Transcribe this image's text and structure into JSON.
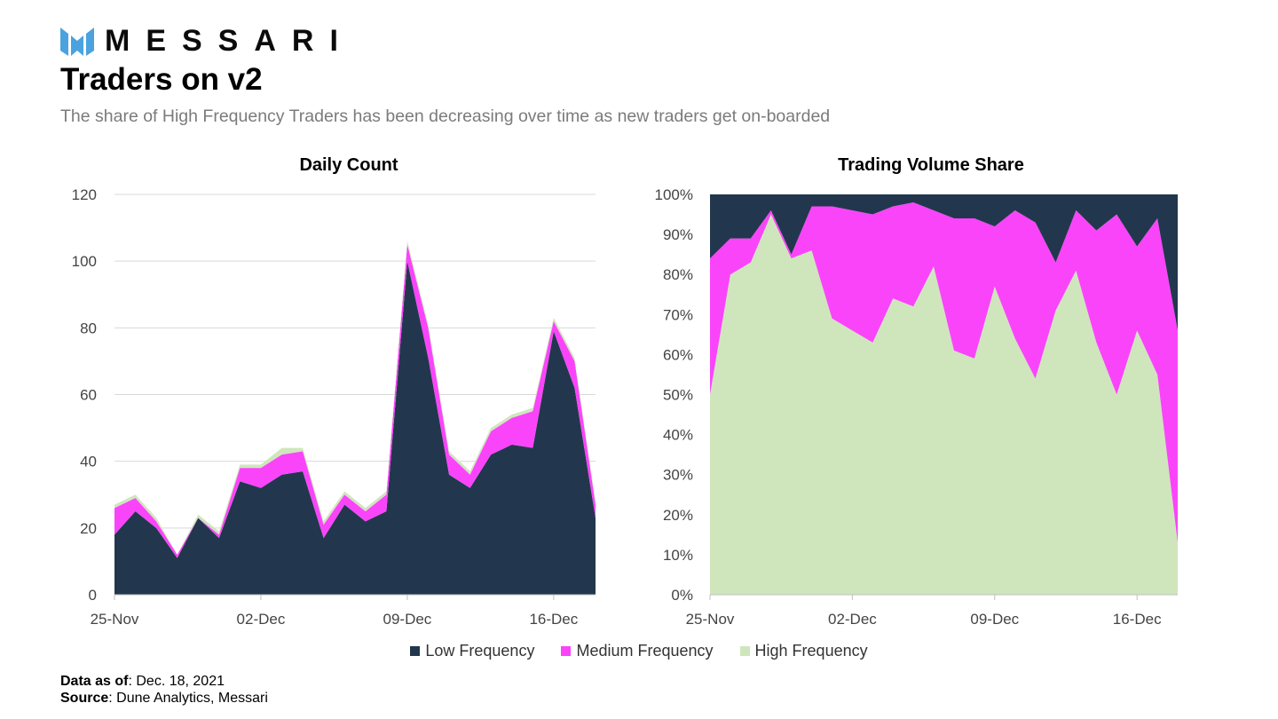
{
  "brand": {
    "name": "MESSARI",
    "logo_icon": "messari-logo-icon",
    "logo_color": "#4aa3df"
  },
  "header": {
    "title": "Traders on v2",
    "subtitle": "The share of High Frequency Traders has been decreasing over time as new traders get on-boarded"
  },
  "legend": [
    {
      "label": "Low Frequency",
      "color": "#22374d"
    },
    {
      "label": "Medium Frequency",
      "color": "#fa44fa"
    },
    {
      "label": "High Frequency",
      "color": "#cfe6bd"
    }
  ],
  "footer": {
    "data_as_of_label": "Data as of",
    "data_as_of_value": ": Dec. 18, 2021",
    "source_label": "Source",
    "source_value": ": Dune Analytics, Messari"
  },
  "chart_data": [
    {
      "type": "area",
      "stacked": true,
      "title": "Daily Count",
      "xlabel": "",
      "ylabel": "",
      "x_tick_labels": [
        "25-Nov",
        "02-Dec",
        "09-Dec",
        "16-Dec"
      ],
      "x_tick_indices": [
        0,
        7,
        14,
        21
      ],
      "ylim": [
        0,
        120
      ],
      "y_ticks": [
        0,
        20,
        40,
        60,
        80,
        100,
        120
      ],
      "grid": true,
      "series": [
        {
          "name": "Low Frequency",
          "color": "#22374d",
          "values": [
            18,
            25,
            20,
            11,
            23,
            17,
            34,
            32,
            36,
            37,
            17,
            27,
            22,
            25,
            100,
            71,
            36,
            32,
            42,
            45,
            44,
            79,
            62,
            23
          ]
        },
        {
          "name": "Medium Frequency",
          "color": "#fa44fa",
          "values": [
            8,
            4,
            2,
            1,
            0,
            1,
            4,
            6,
            6,
            6,
            4,
            3,
            3,
            5,
            5,
            9,
            6,
            4,
            7,
            8,
            11,
            3,
            8,
            4
          ]
        },
        {
          "name": "High Frequency",
          "color": "#cfe6bd",
          "values": [
            1,
            1,
            1,
            0,
            1,
            1,
            1,
            1,
            2,
            1,
            1,
            1,
            1,
            1,
            1,
            1,
            1,
            1,
            1,
            1,
            1,
            1,
            1,
            1
          ]
        }
      ]
    },
    {
      "type": "area",
      "stacked": true,
      "title": "Trading Volume Share",
      "xlabel": "",
      "ylabel": "",
      "x_tick_labels": [
        "25-Nov",
        "02-Dec",
        "09-Dec",
        "16-Dec"
      ],
      "x_tick_indices": [
        0,
        7,
        14,
        21
      ],
      "ylim": [
        0,
        100
      ],
      "y_ticks": [
        0,
        10,
        20,
        30,
        40,
        50,
        60,
        70,
        80,
        90,
        100
      ],
      "y_tick_suffix": "%",
      "grid": false,
      "series": [
        {
          "name": "High Frequency",
          "color": "#cfe6bd",
          "values": [
            50,
            80,
            83,
            95,
            84,
            86,
            69,
            66,
            63,
            74,
            72,
            82,
            61,
            59,
            77,
            64,
            54,
            71,
            81,
            63,
            50,
            66,
            55,
            13
          ]
        },
        {
          "name": "Medium Frequency",
          "color": "#fa44fa",
          "values": [
            34,
            9,
            6,
            1,
            1,
            11,
            28,
            30,
            32,
            23,
            26,
            14,
            33,
            35,
            15,
            32,
            39,
            12,
            15,
            28,
            45,
            21,
            39,
            53
          ]
        },
        {
          "name": "Low Frequency",
          "color": "#22374d",
          "values": [
            16,
            11,
            11,
            4,
            15,
            3,
            3,
            4,
            5,
            3,
            2,
            4,
            6,
            6,
            8,
            4,
            7,
            17,
            4,
            9,
            5,
            13,
            6,
            34
          ]
        }
      ]
    }
  ]
}
